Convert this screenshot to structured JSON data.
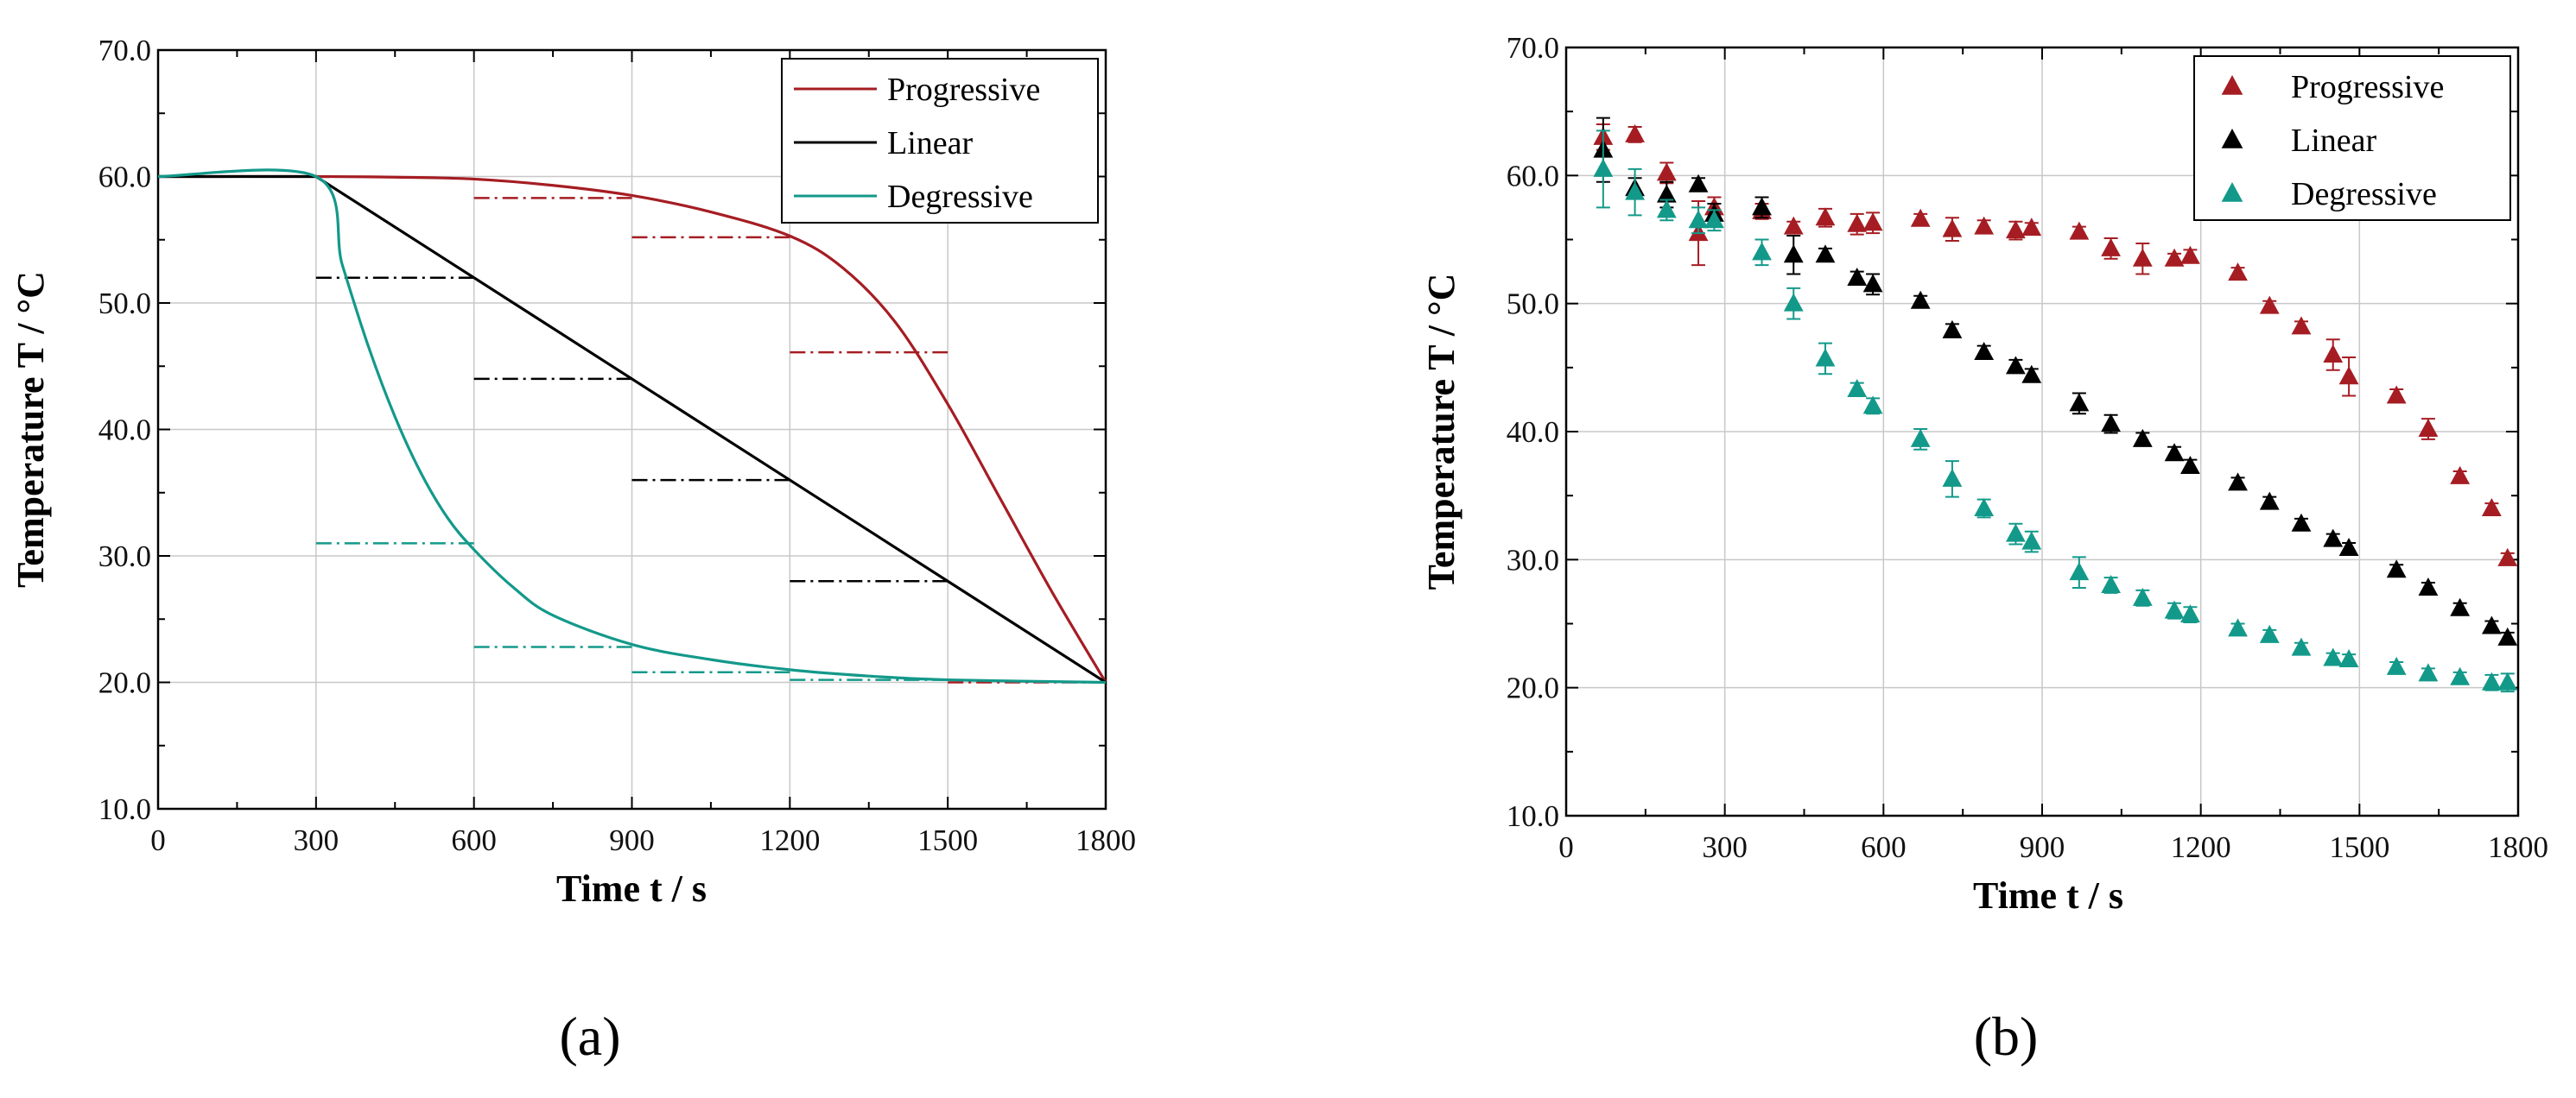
{
  "chart_data": [
    {
      "type": "line",
      "panel_label": "(a)",
      "xlabel": "Time t / s",
      "ylabel": "Temperature T / °C",
      "xlim": [
        0,
        1800
      ],
      "ylim": [
        10,
        70
      ],
      "xticks": [
        "0",
        "300",
        "600",
        "900",
        "1200",
        "1500",
        "1800"
      ],
      "yticks": [
        "10.0",
        "20.0",
        "30.0",
        "40.0",
        "50.0",
        "60.0",
        "70.0"
      ],
      "grid": true,
      "legend_position": "top-right",
      "series": [
        {
          "name": "Progressive",
          "color": "#a51d23",
          "x": [
            0,
            300,
            450,
            600,
            750,
            900,
            1050,
            1200,
            1300,
            1400,
            1500,
            1600,
            1700,
            1800
          ],
          "y": [
            60.0,
            60.0,
            59.95,
            59.8,
            59.3,
            58.5,
            57.2,
            55.3,
            52.8,
            48.5,
            42.0,
            34.5,
            27.0,
            20.0
          ]
        },
        {
          "name": "Linear",
          "color": "#000000",
          "x": [
            0,
            300,
            1800
          ],
          "y": [
            60.0,
            60.0,
            20.0
          ]
        },
        {
          "name": "Degressive",
          "color": "#13998a",
          "x": [
            0,
            300,
            350,
            400,
            450,
            500,
            550,
            600,
            675,
            750,
            900,
            1050,
            1200,
            1350,
            1500,
            1800
          ],
          "y": [
            60.0,
            60.0,
            53.0,
            46.5,
            41.0,
            36.5,
            33.0,
            30.5,
            27.5,
            25.3,
            23.0,
            21.8,
            21.0,
            20.5,
            20.2,
            20.0
          ]
        }
      ],
      "step_segments": [
        {
          "series": "Progressive",
          "x": [
            600,
            900
          ],
          "y": 58.3
        },
        {
          "series": "Progressive",
          "x": [
            900,
            1200
          ],
          "y": 55.2
        },
        {
          "series": "Progressive",
          "x": [
            1200,
            1500
          ],
          "y": 46.1
        },
        {
          "series": "Progressive",
          "x": [
            1500,
            1800
          ],
          "y": 20.0
        },
        {
          "series": "Linear",
          "x": [
            300,
            600
          ],
          "y": 52.0
        },
        {
          "series": "Linear",
          "x": [
            600,
            900
          ],
          "y": 44.0
        },
        {
          "series": "Linear",
          "x": [
            900,
            1200
          ],
          "y": 36.0
        },
        {
          "series": "Linear",
          "x": [
            1200,
            1500
          ],
          "y": 28.0
        },
        {
          "series": "Degressive",
          "x": [
            300,
            600
          ],
          "y": 31.0
        },
        {
          "series": "Degressive",
          "x": [
            600,
            900
          ],
          "y": 22.8
        },
        {
          "series": "Degressive",
          "x": [
            900,
            1200
          ],
          "y": 20.8
        },
        {
          "series": "Degressive",
          "x": [
            1200,
            1500
          ],
          "y": 20.2
        }
      ]
    },
    {
      "type": "scatter",
      "panel_label": "(b)",
      "xlabel": "Time t / s",
      "ylabel": "Temperature T / °C",
      "xlim": [
        0,
        1800
      ],
      "ylim": [
        10,
        70
      ],
      "xticks": [
        "0",
        "300",
        "600",
        "900",
        "1200",
        "1500",
        "1800"
      ],
      "yticks": [
        "10.0",
        "20.0",
        "30.0",
        "40.0",
        "50.0",
        "60.0",
        "70.0"
      ],
      "grid": true,
      "legend_position": "top-right",
      "series": [
        {
          "name": "Progressive",
          "color": "#a51d23",
          "x": [
            70,
            130,
            190,
            250,
            280,
            370,
            430,
            490,
            550,
            580,
            670,
            730,
            790,
            850,
            880,
            970,
            1030,
            1090,
            1150,
            1180,
            1270,
            1330,
            1390,
            1450,
            1480,
            1570,
            1630,
            1690,
            1750,
            1780
          ],
          "y": [
            63.0,
            63.2,
            60.2,
            55.5,
            57.5,
            57.2,
            56.0,
            56.7,
            56.2,
            56.3,
            56.6,
            55.8,
            56.0,
            55.7,
            55.9,
            55.6,
            54.3,
            53.5,
            53.5,
            53.7,
            52.4,
            49.8,
            48.2,
            46.0,
            44.3,
            42.8,
            40.2,
            36.5,
            34.0,
            30.1
          ],
          "err": [
            1.0,
            0.6,
            0.8,
            2.5,
            0.8,
            0.6,
            0.4,
            0.7,
            0.8,
            0.8,
            0.4,
            0.9,
            0.5,
            0.7,
            0.4,
            0.4,
            0.8,
            1.2,
            0.4,
            0.5,
            0.4,
            0.4,
            0.4,
            1.2,
            1.5,
            0.5,
            0.8,
            0.4,
            0.4,
            0.4
          ]
        },
        {
          "name": "Linear",
          "color": "#000000",
          "x": [
            70,
            130,
            190,
            250,
            280,
            370,
            430,
            490,
            550,
            580,
            670,
            730,
            790,
            850,
            880,
            970,
            1030,
            1090,
            1150,
            1180,
            1270,
            1330,
            1390,
            1450,
            1480,
            1570,
            1630,
            1690,
            1750,
            1780
          ],
          "y": [
            62.0,
            59.0,
            58.5,
            59.3,
            57.0,
            57.5,
            53.8,
            53.8,
            52.0,
            51.5,
            50.2,
            47.9,
            46.2,
            45.1,
            44.4,
            42.2,
            40.6,
            39.4,
            38.3,
            37.3,
            36.0,
            34.5,
            32.8,
            31.6,
            30.9,
            29.2,
            27.8,
            26.2,
            24.8,
            23.9
          ],
          "err": [
            2.5,
            0.8,
            1.0,
            0.5,
            0.8,
            0.8,
            1.5,
            0.5,
            0.5,
            0.8,
            0.4,
            0.5,
            0.5,
            0.5,
            0.5,
            0.8,
            0.7,
            0.5,
            0.5,
            0.5,
            0.4,
            0.4,
            0.4,
            0.4,
            0.4,
            0.4,
            0.4,
            0.4,
            0.4,
            0.4
          ]
        },
        {
          "name": "Degressive",
          "color": "#13998a",
          "x": [
            70,
            130,
            190,
            250,
            280,
            370,
            430,
            490,
            550,
            580,
            670,
            730,
            790,
            850,
            880,
            970,
            1030,
            1090,
            1150,
            1180,
            1270,
            1330,
            1390,
            1450,
            1480,
            1570,
            1630,
            1690,
            1750,
            1780
          ],
          "y": [
            60.5,
            58.7,
            57.3,
            56.5,
            56.5,
            54.0,
            50.0,
            45.7,
            43.3,
            42.0,
            39.4,
            36.3,
            34.0,
            32.0,
            31.4,
            29.0,
            28.0,
            27.0,
            26.0,
            25.7,
            24.6,
            24.1,
            23.1,
            22.3,
            22.2,
            21.6,
            21.1,
            20.8,
            20.4,
            20.4
          ],
          "err": [
            3.0,
            1.8,
            0.8,
            1.0,
            0.8,
            1.0,
            1.2,
            1.2,
            0.5,
            0.6,
            0.8,
            1.4,
            0.7,
            0.8,
            0.8,
            1.2,
            0.6,
            0.6,
            0.6,
            0.6,
            0.4,
            0.4,
            0.4,
            0.4,
            0.4,
            0.4,
            0.4,
            0.4,
            0.6,
            0.7
          ]
        }
      ]
    }
  ]
}
